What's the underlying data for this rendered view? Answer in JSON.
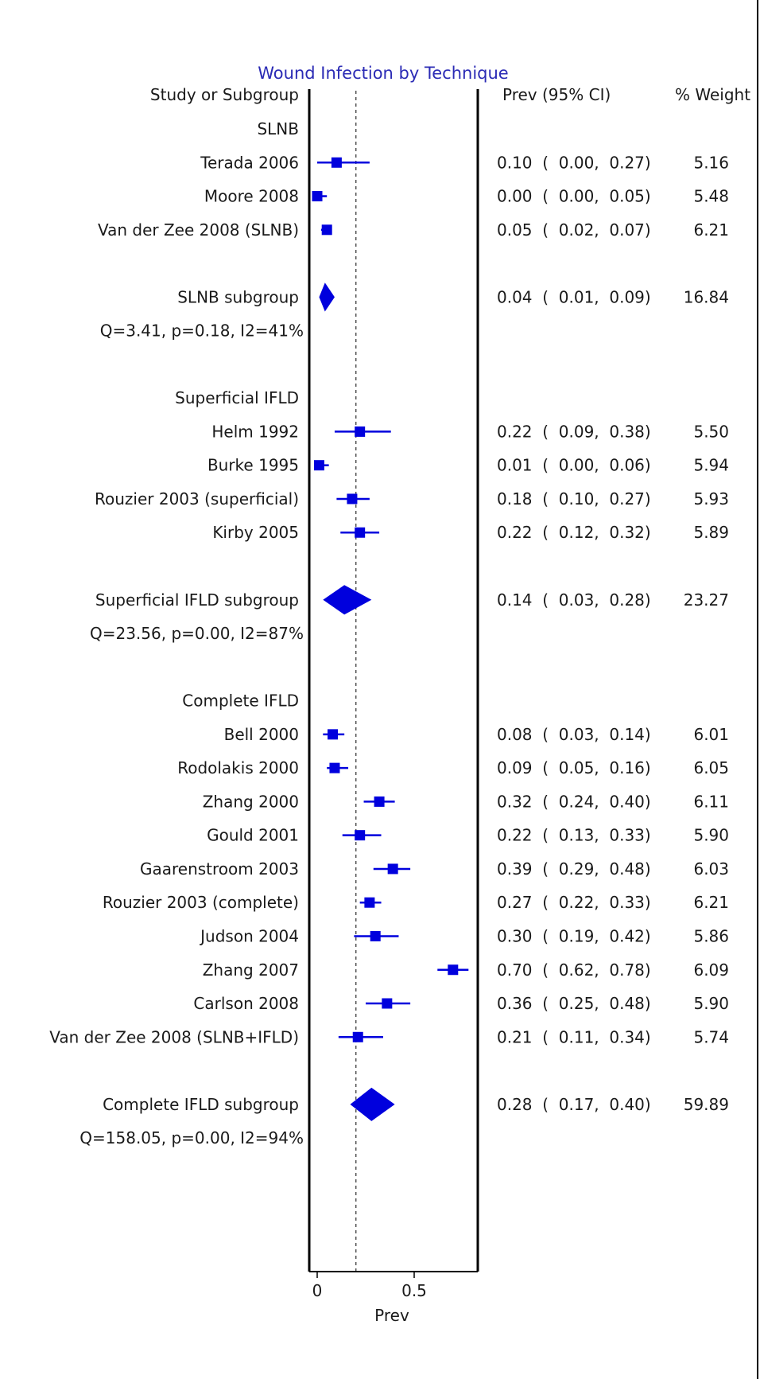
{
  "chart_data": {
    "type": "forest",
    "title": "Wound Infection by Technique",
    "xlabel": "Prev",
    "columns": {
      "study": "Study or Subgroup",
      "ci": "Prev (95% CI)",
      "weight": "% Weight"
    },
    "xlim": [
      0,
      0.8
    ],
    "xticks": [
      {
        "value": 0,
        "label": "0"
      },
      {
        "value": 0.5,
        "label": "0.5"
      }
    ],
    "reference_line": 0.2,
    "colors": {
      "marker": "#0000dd",
      "title": "#2b2bb5",
      "axis": "#000000"
    },
    "rows": [
      {
        "kind": "header",
        "label": "SLNB"
      },
      {
        "kind": "study",
        "label": "Terada 2006",
        "est": 0.1,
        "lo": 0.0,
        "hi": 0.27,
        "weight": 5.16,
        "ci_text": "0.10  (  0.00,  0.27)",
        "weight_text": "5.16"
      },
      {
        "kind": "study",
        "label": "Moore 2008",
        "est": 0.0,
        "lo": 0.0,
        "hi": 0.05,
        "weight": 5.48,
        "ci_text": "0.00  (  0.00,  0.05)",
        "weight_text": "5.48"
      },
      {
        "kind": "study",
        "label": "Van der Zee 2008 (SLNB)",
        "est": 0.05,
        "lo": 0.02,
        "hi": 0.07,
        "weight": 6.21,
        "ci_text": "0.05  (  0.02,  0.07)",
        "weight_text": "6.21"
      },
      {
        "kind": "blank"
      },
      {
        "kind": "subgroup",
        "label": "SLNB subgroup",
        "est": 0.04,
        "lo": 0.01,
        "hi": 0.09,
        "weight": 16.84,
        "ci_text": "0.04  (  0.01,  0.09)",
        "weight_text": "16.84"
      },
      {
        "kind": "stats",
        "label": "Q=3.41, p=0.18, I2=41%"
      },
      {
        "kind": "blank"
      },
      {
        "kind": "header",
        "label": "Superficial IFLD"
      },
      {
        "kind": "study",
        "label": "Helm 1992",
        "est": 0.22,
        "lo": 0.09,
        "hi": 0.38,
        "weight": 5.5,
        "ci_text": "0.22  (  0.09,  0.38)",
        "weight_text": "5.50"
      },
      {
        "kind": "study",
        "label": "Burke 1995",
        "est": 0.01,
        "lo": 0.0,
        "hi": 0.06,
        "weight": 5.94,
        "ci_text": "0.01  (  0.00,  0.06)",
        "weight_text": "5.94"
      },
      {
        "kind": "study",
        "label": "Rouzier 2003 (superficial)",
        "est": 0.18,
        "lo": 0.1,
        "hi": 0.27,
        "weight": 5.93,
        "ci_text": "0.18  (  0.10,  0.27)",
        "weight_text": "5.93"
      },
      {
        "kind": "study",
        "label": "Kirby 2005",
        "est": 0.22,
        "lo": 0.12,
        "hi": 0.32,
        "weight": 5.89,
        "ci_text": "0.22  (  0.12,  0.32)",
        "weight_text": "5.89"
      },
      {
        "kind": "blank"
      },
      {
        "kind": "subgroup",
        "label": "Superficial IFLD subgroup",
        "est": 0.14,
        "lo": 0.03,
        "hi": 0.28,
        "weight": 23.27,
        "ci_text": "0.14  (  0.03,  0.28)",
        "weight_text": "23.27"
      },
      {
        "kind": "stats",
        "label": "Q=23.56, p=0.00, I2=87%"
      },
      {
        "kind": "blank"
      },
      {
        "kind": "header",
        "label": "Complete IFLD"
      },
      {
        "kind": "study",
        "label": "Bell 2000",
        "est": 0.08,
        "lo": 0.03,
        "hi": 0.14,
        "weight": 6.01,
        "ci_text": "0.08  (  0.03,  0.14)",
        "weight_text": "6.01"
      },
      {
        "kind": "study",
        "label": "Rodolakis 2000",
        "est": 0.09,
        "lo": 0.05,
        "hi": 0.16,
        "weight": 6.05,
        "ci_text": "0.09  (  0.05,  0.16)",
        "weight_text": "6.05"
      },
      {
        "kind": "study",
        "label": "Zhang 2000",
        "est": 0.32,
        "lo": 0.24,
        "hi": 0.4,
        "weight": 6.11,
        "ci_text": "0.32  (  0.24,  0.40)",
        "weight_text": "6.11"
      },
      {
        "kind": "study",
        "label": "Gould 2001",
        "est": 0.22,
        "lo": 0.13,
        "hi": 0.33,
        "weight": 5.9,
        "ci_text": "0.22  (  0.13,  0.33)",
        "weight_text": "5.90"
      },
      {
        "kind": "study",
        "label": "Gaarenstroom 2003",
        "est": 0.39,
        "lo": 0.29,
        "hi": 0.48,
        "weight": 6.03,
        "ci_text": "0.39  (  0.29,  0.48)",
        "weight_text": "6.03"
      },
      {
        "kind": "study",
        "label": "Rouzier 2003 (complete)",
        "est": 0.27,
        "lo": 0.22,
        "hi": 0.33,
        "weight": 6.21,
        "ci_text": "0.27  (  0.22,  0.33)",
        "weight_text": "6.21"
      },
      {
        "kind": "study",
        "label": "Judson 2004",
        "est": 0.3,
        "lo": 0.19,
        "hi": 0.42,
        "weight": 5.86,
        "ci_text": "0.30  (  0.19,  0.42)",
        "weight_text": "5.86"
      },
      {
        "kind": "study",
        "label": "Zhang 2007",
        "est": 0.7,
        "lo": 0.62,
        "hi": 0.78,
        "weight": 6.09,
        "ci_text": "0.70  (  0.62,  0.78)",
        "weight_text": "6.09"
      },
      {
        "kind": "study",
        "label": "Carlson 2008",
        "est": 0.36,
        "lo": 0.25,
        "hi": 0.48,
        "weight": 5.9,
        "ci_text": "0.36  (  0.25,  0.48)",
        "weight_text": "5.90"
      },
      {
        "kind": "study",
        "label": "Van der Zee 2008 (SLNB+IFLD)",
        "est": 0.21,
        "lo": 0.11,
        "hi": 0.34,
        "weight": 5.74,
        "ci_text": "0.21  (  0.11,  0.34)",
        "weight_text": "5.74"
      },
      {
        "kind": "blank"
      },
      {
        "kind": "subgroup",
        "label": "Complete IFLD subgroup",
        "est": 0.28,
        "lo": 0.17,
        "hi": 0.4,
        "weight": 59.89,
        "ci_text": "0.28  (  0.17,  0.40)",
        "weight_text": "59.89"
      },
      {
        "kind": "stats",
        "label": "Q=158.05, p=0.00, I2=94%"
      }
    ]
  }
}
